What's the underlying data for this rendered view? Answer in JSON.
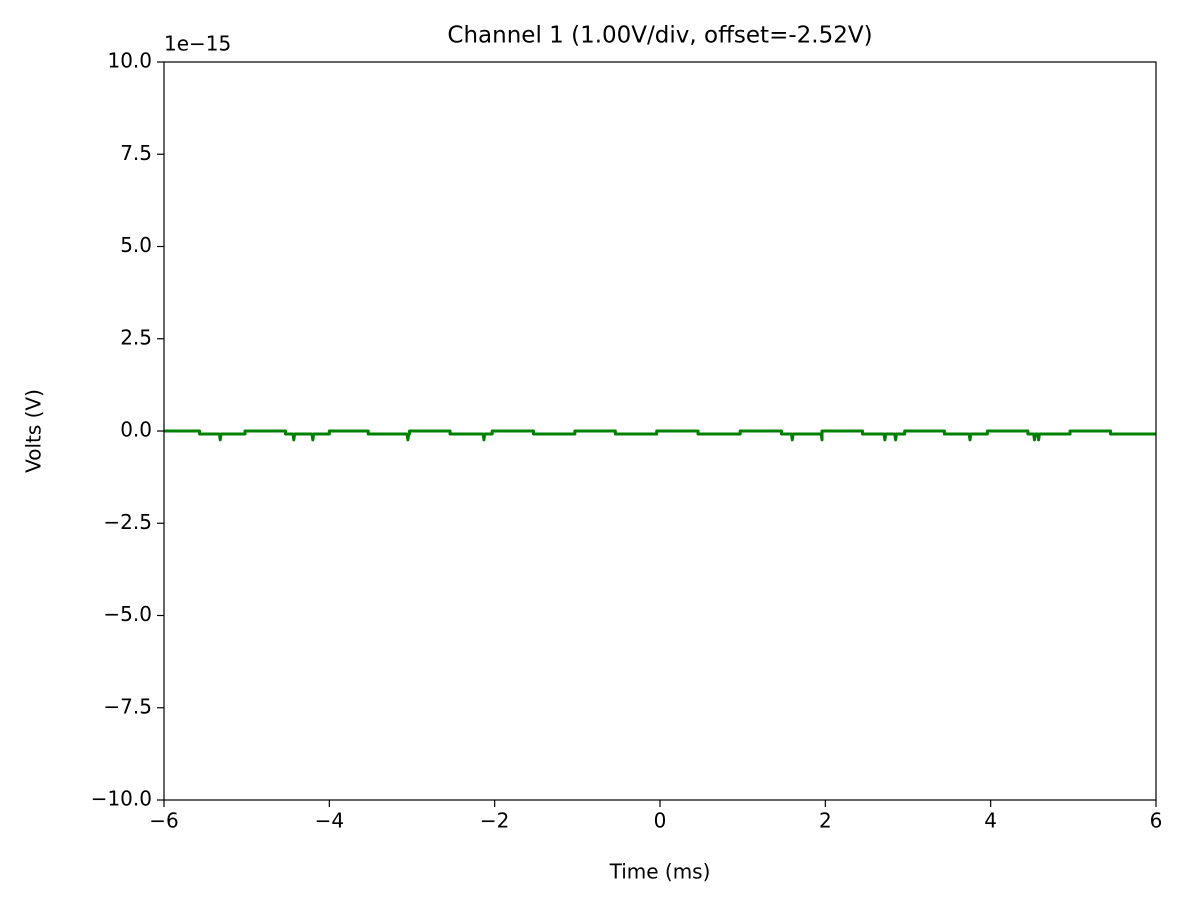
{
  "chart_data": {
    "type": "line",
    "title": "Channel 1 (1.00V/div, offset=-2.52V)",
    "x_label": "Time (ms)",
    "y_label": "Volts (V)",
    "y_offset_text": "1e−15",
    "xlim": [
      -6,
      6
    ],
    "ylim": [
      -10,
      10
    ],
    "xticks": [
      {
        "value": -6,
        "label": "−6"
      },
      {
        "value": -4,
        "label": "−4"
      },
      {
        "value": -2,
        "label": "−2"
      },
      0,
      2,
      4,
      6
    ],
    "yticks": [
      {
        "value": -10,
        "label": "−10.0"
      },
      {
        "value": -7.5,
        "label": "−7.5"
      },
      {
        "value": -5,
        "label": "−5.0"
      },
      {
        "value": -2.5,
        "label": "−2.5"
      },
      {
        "value": 0,
        "label": "0.0"
      },
      {
        "value": 2.5,
        "label": "2.5"
      },
      {
        "value": 5,
        "label": "5.0"
      },
      {
        "value": 7.5,
        "label": "7.5"
      },
      {
        "value": 10,
        "label": "10.0"
      }
    ],
    "grid": false,
    "x": [
      -6,
      -5.57,
      -5.57,
      -5.33,
      -5.32,
      -5.31,
      -5.02,
      -5.02,
      -4.53,
      -4.53,
      -4.44,
      -4.43,
      -4.42,
      -4.21,
      -4.2,
      -4.19,
      -4.0,
      -4.0,
      -3.53,
      -3.53,
      -3.06,
      -3.05,
      -3.04,
      -3.03,
      -3.03,
      -2.54,
      -2.54,
      -2.14,
      -2.13,
      -2.12,
      -2.03,
      -2.03,
      -1.53,
      -1.53,
      -1.03,
      -1.03,
      -0.54,
      -0.54,
      -0.04,
      -0.04,
      0.46,
      0.46,
      0.97,
      0.97,
      1.47,
      1.47,
      1.59,
      1.6,
      1.61,
      1.95,
      1.96,
      1.96,
      2.45,
      2.45,
      2.71,
      2.72,
      2.73,
      2.84,
      2.85,
      2.86,
      2.96,
      2.96,
      3.44,
      3.44,
      3.74,
      3.75,
      3.76,
      3.96,
      3.96,
      4.45,
      4.45,
      4.52,
      4.53,
      4.54,
      4.57,
      4.58,
      4.59,
      4.96,
      4.96,
      5.45,
      5.45,
      6
    ],
    "series": [
      {
        "color": "#008000",
        "values": [
          0,
          0,
          -0.08,
          -0.08,
          -0.24,
          -0.08,
          -0.08,
          0,
          0,
          -0.08,
          -0.08,
          -0.24,
          -0.08,
          -0.08,
          -0.24,
          -0.08,
          -0.08,
          0,
          0,
          -0.08,
          -0.08,
          -0.24,
          -0.08,
          -0.08,
          0,
          0,
          -0.08,
          -0.08,
          -0.24,
          -0.08,
          -0.08,
          0,
          0,
          -0.08,
          -0.08,
          0,
          0,
          -0.08,
          -0.08,
          0,
          0,
          -0.08,
          -0.08,
          0,
          0,
          -0.08,
          -0.08,
          -0.24,
          -0.08,
          -0.08,
          -0.24,
          0,
          0,
          -0.08,
          -0.08,
          -0.24,
          -0.08,
          -0.08,
          -0.24,
          -0.08,
          -0.08,
          0,
          0,
          -0.08,
          -0.08,
          -0.24,
          -0.08,
          -0.08,
          0,
          0,
          -0.08,
          -0.08,
          -0.24,
          -0.08,
          -0.08,
          -0.24,
          -0.08,
          -0.08,
          0,
          0,
          -0.08,
          -0.08
        ]
      }
    ]
  }
}
